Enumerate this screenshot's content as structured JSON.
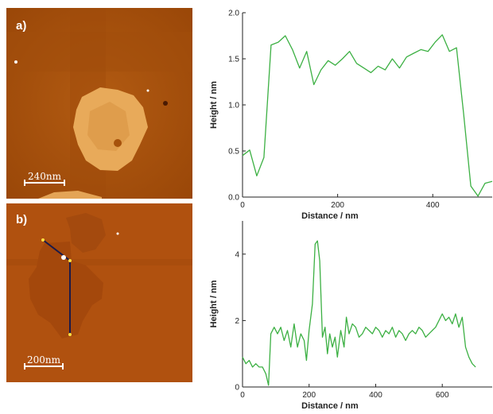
{
  "images": {
    "a": {
      "label": "a)",
      "scalebar": "240nm"
    },
    "b": {
      "label": "b)",
      "scalebar": "200nm"
    }
  },
  "chart_data": [
    {
      "type": "line",
      "series": [
        {
          "color": "#3cb043",
          "x": [
            0,
            15,
            30,
            45,
            60,
            75,
            90,
            105,
            120,
            135,
            150,
            165,
            180,
            195,
            210,
            225,
            240,
            255,
            270,
            285,
            300,
            315,
            330,
            345,
            360,
            375,
            390,
            405,
            420,
            435,
            450,
            465,
            480,
            495,
            510,
            525
          ],
          "y": [
            0.45,
            0.51,
            0.23,
            0.43,
            1.65,
            1.68,
            1.75,
            1.6,
            1.4,
            1.58,
            1.22,
            1.38,
            1.48,
            1.43,
            1.5,
            1.58,
            1.45,
            1.4,
            1.35,
            1.42,
            1.38,
            1.5,
            1.4,
            1.52,
            1.56,
            1.6,
            1.58,
            1.68,
            1.76,
            1.58,
            1.62,
            0.9,
            0.12,
            0.01,
            0.15,
            0.17
          ]
        }
      ],
      "xlabel": "Distance / nm",
      "ylabel": "Height / nm",
      "xlim": [
        0,
        525
      ],
      "ylim": [
        0,
        2.0
      ],
      "xticks": [
        0,
        200,
        400
      ],
      "yticks": [
        0.0,
        0.5,
        1.0,
        1.5,
        2.0
      ],
      "ytick_labels": [
        "0.0",
        "0.5",
        "1.0",
        "1.5",
        "2.0"
      ],
      "grid": false
    },
    {
      "type": "line",
      "series": [
        {
          "color": "#3cb043",
          "x": [
            0,
            10,
            20,
            30,
            40,
            50,
            60,
            70,
            78,
            85,
            95,
            105,
            115,
            125,
            135,
            145,
            155,
            165,
            175,
            185,
            192,
            200,
            210,
            218,
            225,
            232,
            240,
            248,
            255,
            262,
            270,
            278,
            285,
            295,
            305,
            312,
            320,
            330,
            340,
            350,
            360,
            370,
            380,
            390,
            400,
            410,
            420,
            430,
            440,
            450,
            460,
            470,
            480,
            490,
            500,
            510,
            520,
            530,
            540,
            550,
            560,
            570,
            580,
            590,
            600,
            610,
            620,
            630,
            640,
            650,
            660,
            670,
            680,
            690,
            700
          ],
          "y": [
            0.9,
            0.7,
            0.8,
            0.6,
            0.7,
            0.6,
            0.6,
            0.4,
            0.05,
            1.6,
            1.8,
            1.6,
            1.8,
            1.4,
            1.7,
            1.2,
            1.9,
            1.2,
            1.6,
            1.4,
            0.8,
            1.7,
            2.5,
            4.3,
            4.4,
            3.8,
            1.5,
            1.8,
            1.0,
            1.6,
            1.2,
            1.5,
            0.9,
            1.7,
            1.2,
            2.1,
            1.6,
            1.9,
            1.8,
            1.5,
            1.6,
            1.8,
            1.7,
            1.6,
            1.8,
            1.7,
            1.5,
            1.7,
            1.6,
            1.8,
            1.5,
            1.7,
            1.6,
            1.4,
            1.6,
            1.7,
            1.6,
            1.8,
            1.7,
            1.5,
            1.6,
            1.7,
            1.8,
            2.0,
            2.2,
            2.0,
            2.1,
            1.9,
            2.2,
            1.8,
            2.1,
            1.2,
            0.9,
            0.7,
            0.6
          ]
        }
      ],
      "xlabel": "Distance / nm",
      "ylabel": "Height / nm",
      "xlim": [
        0,
        750
      ],
      "ylim": [
        0,
        5
      ],
      "xticks": [
        0,
        200,
        400,
        600
      ],
      "yticks": [
        0,
        2,
        4
      ],
      "ytick_labels": [
        "0",
        "2",
        "4"
      ],
      "grid": false
    }
  ]
}
